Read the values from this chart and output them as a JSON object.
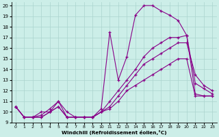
{
  "xlabel": "Windchill (Refroidissement éolien,°C)",
  "background_color": "#cceee8",
  "grid_color": "#aad4ce",
  "line_color": "#880088",
  "xlim": [
    -0.5,
    23.5
  ],
  "ylim": [
    9,
    20.3
  ],
  "xticks": [
    0,
    1,
    2,
    3,
    4,
    5,
    6,
    7,
    8,
    9,
    10,
    11,
    12,
    13,
    14,
    15,
    16,
    17,
    18,
    19,
    20,
    21,
    22,
    23
  ],
  "yticks": [
    9,
    10,
    11,
    12,
    13,
    14,
    15,
    16,
    17,
    18,
    19,
    20
  ],
  "line1_x": [
    0,
    1,
    2,
    3,
    4,
    5,
    6,
    7,
    8,
    9,
    10,
    11,
    12,
    13,
    14,
    15,
    16,
    17,
    18,
    19,
    20,
    21,
    22,
    23
  ],
  "line1_y": [
    10.5,
    9.5,
    9.5,
    10.0,
    10.0,
    11.0,
    9.5,
    9.5,
    9.5,
    9.5,
    10.3,
    17.5,
    13.0,
    15.2,
    19.1,
    20.0,
    20.0,
    19.5,
    19.1,
    18.6,
    17.2,
    11.7,
    11.5,
    11.5
  ],
  "line2_x": [
    0,
    1,
    2,
    3,
    4,
    5,
    6,
    7,
    8,
    9,
    10,
    11,
    12,
    13,
    14,
    15,
    16,
    17,
    18,
    19,
    20,
    21,
    22,
    23
  ],
  "line2_y": [
    10.5,
    9.5,
    9.5,
    9.7,
    10.3,
    11.0,
    10.0,
    9.5,
    9.5,
    9.5,
    10.0,
    11.0,
    12.0,
    13.0,
    14.0,
    15.2,
    16.0,
    16.5,
    17.0,
    17.0,
    17.2,
    12.7,
    12.2,
    11.7
  ],
  "line3_x": [
    0,
    1,
    2,
    3,
    4,
    5,
    6,
    7,
    8,
    9,
    10,
    11,
    12,
    13,
    14,
    15,
    16,
    17,
    18,
    19,
    20,
    21,
    22,
    23
  ],
  "line3_y": [
    10.5,
    9.5,
    9.5,
    9.5,
    10.0,
    10.5,
    9.5,
    9.5,
    9.5,
    9.5,
    10.0,
    10.5,
    11.5,
    12.5,
    13.5,
    14.5,
    15.0,
    15.5,
    16.0,
    16.5,
    16.5,
    13.5,
    12.5,
    12.0
  ],
  "line4_x": [
    0,
    1,
    2,
    3,
    4,
    5,
    6,
    7,
    8,
    9,
    10,
    11,
    12,
    13,
    14,
    15,
    16,
    17,
    18,
    19,
    20,
    21,
    22,
    23
  ],
  "line4_y": [
    10.5,
    9.5,
    9.5,
    9.5,
    10.0,
    10.5,
    9.5,
    9.5,
    9.5,
    9.5,
    10.0,
    10.3,
    11.0,
    12.0,
    12.5,
    13.0,
    13.5,
    14.0,
    14.5,
    15.0,
    15.0,
    11.5,
    11.5,
    11.5
  ]
}
